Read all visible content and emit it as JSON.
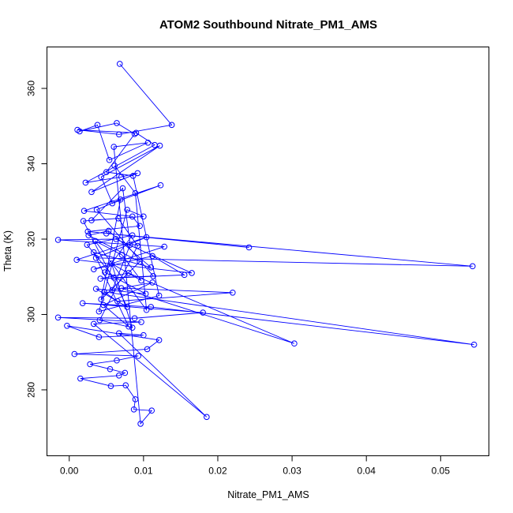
{
  "chart_data": {
    "type": "line",
    "title": "ATOM2 Southbound Nitrate_PM1_AMS",
    "xlabel": "Nitrate_PM1_AMS",
    "ylabel": "Theta (K)",
    "xlim": [
      -0.003,
      0.0565
    ],
    "ylim": [
      262.5,
      371
    ],
    "xticks": [
      0.0,
      0.01,
      0.02,
      0.03,
      0.04,
      0.05
    ],
    "xtick_labels": [
      "0.00",
      "0.01",
      "0.02",
      "0.03",
      "0.04",
      "0.05"
    ],
    "yticks": [
      280,
      300,
      320,
      340,
      360
    ],
    "ytick_labels": [
      "280",
      "300",
      "320",
      "340",
      "360"
    ],
    "marker": "open-circle",
    "series": [
      {
        "name": "Nitrate_PM1_AMS",
        "color": "#0000ff",
        "points": [
          [
            0.0068,
            366.5
          ],
          [
            0.0138,
            350.3
          ],
          [
            0.0067,
            347.8
          ],
          [
            0.0011,
            349.0
          ],
          [
            0.009,
            348.2
          ],
          [
            0.0115,
            345.0
          ],
          [
            0.0022,
            335.0
          ],
          [
            0.007,
            336.5
          ],
          [
            0.0092,
            337.5
          ],
          [
            0.003,
            332.5
          ],
          [
            0.0122,
            344.8
          ],
          [
            0.0043,
            336.5
          ],
          [
            0.0058,
            329.5
          ],
          [
            0.0123,
            334.3
          ],
          [
            0.002,
            327.5
          ],
          [
            0.0085,
            326.0
          ],
          [
            0.0095,
            323.5
          ],
          [
            0.0025,
            322.0
          ],
          [
            0.0242,
            317.8
          ],
          [
            0.005,
            321.5
          ],
          [
            0.0543,
            312.8
          ],
          [
            0.0036,
            315.0
          ],
          [
            0.0104,
            320.5
          ],
          [
            0.001,
            314.5
          ],
          [
            0.0165,
            311.0
          ],
          [
            0.0063,
            320.0
          ],
          [
            -0.0015,
            319.8
          ],
          [
            0.0128,
            318.0
          ],
          [
            0.0033,
            312.0
          ],
          [
            0.0112,
            315.5
          ],
          [
            0.0155,
            310.5
          ],
          [
            0.0042,
            309.5
          ],
          [
            0.008,
            311.0
          ],
          [
            0.0303,
            292.3
          ],
          [
            0.007,
            307.0
          ],
          [
            0.022,
            305.8
          ],
          [
            0.0065,
            303.5
          ],
          [
            0.0047,
            306.0
          ],
          [
            0.0545,
            292.0
          ],
          [
            0.011,
            302.0
          ],
          [
            0.0018,
            303.0
          ],
          [
            0.018,
            300.5
          ],
          [
            0.0088,
            299.0
          ],
          [
            -0.0015,
            299.2
          ],
          [
            0.0097,
            298.0
          ],
          [
            0.0033,
            297.5
          ],
          [
            0.0185,
            272.8
          ],
          [
            0.0067,
            295.0
          ],
          [
            0.01,
            294.5
          ],
          [
            0.004,
            294.0
          ],
          [
            -0.0003,
            297.0
          ],
          [
            0.0121,
            293.2
          ],
          [
            0.0105,
            290.8
          ],
          [
            0.0007,
            289.5
          ],
          [
            0.0093,
            289.0
          ],
          [
            0.0064,
            287.8
          ],
          [
            0.0028,
            286.8
          ],
          [
            0.0055,
            285.5
          ],
          [
            0.0075,
            284.5
          ],
          [
            0.0067,
            283.8
          ],
          [
            0.0015,
            283.0
          ],
          [
            0.0056,
            281.0
          ],
          [
            0.0076,
            281.2
          ],
          [
            0.0089,
            277.5
          ],
          [
            0.0087,
            274.8
          ],
          [
            0.0111,
            274.5
          ],
          [
            0.0096,
            271.0
          ],
          [
            0.006,
            344.5
          ],
          [
            0.0106,
            345.6
          ],
          [
            0.0054,
            341.0
          ],
          [
            0.0038,
            350.3
          ],
          [
            0.0014,
            348.6
          ],
          [
            0.0064,
            350.8
          ],
          [
            0.0088,
            347.9
          ],
          [
            0.005,
            337.8
          ],
          [
            0.0086,
            336.8
          ],
          [
            0.0121,
            305.0
          ],
          [
            0.004,
            300.8
          ],
          [
            0.0078,
            327.8
          ],
          [
            0.01,
            326.0
          ],
          [
            0.003,
            325.0
          ],
          [
            0.0072,
            333.5
          ],
          [
            0.0082,
            318.5
          ],
          [
            0.0058,
            306.5
          ],
          [
            0.0112,
            308.5
          ],
          [
            0.0046,
            302.5
          ],
          [
            0.008,
            296.8
          ],
          [
            0.0033,
            316.5
          ],
          [
            0.011,
            312.5
          ],
          [
            0.0053,
            322.2
          ],
          [
            0.0026,
            321.0
          ],
          [
            0.0095,
            314.0
          ],
          [
            0.0043,
            304.0
          ],
          [
            0.0069,
            330.5
          ],
          [
            0.0037,
            327.8
          ],
          [
            0.0113,
            310.2
          ],
          [
            0.006,
            309.8
          ],
          [
            0.0024,
            318.5
          ],
          [
            0.0085,
            321.0
          ],
          [
            0.0048,
            311.2
          ],
          [
            0.0103,
            305.5
          ],
          [
            0.0036,
            306.8
          ],
          [
            0.0078,
            302.0
          ],
          [
            0.0019,
            324.8
          ],
          [
            0.0066,
            325.5
          ],
          [
            0.0092,
            318.2
          ],
          [
            0.0041,
            298.5
          ],
          [
            0.0085,
            296.5
          ],
          [
            0.0057,
            313.5
          ],
          [
            0.0097,
            309.0
          ],
          [
            0.0071,
            315.8
          ],
          [
            0.0035,
            319.5
          ],
          [
            0.0104,
            301.2
          ],
          [
            0.0089,
            332.2
          ],
          [
            0.0061,
            339.5
          ]
        ]
      }
    ]
  }
}
